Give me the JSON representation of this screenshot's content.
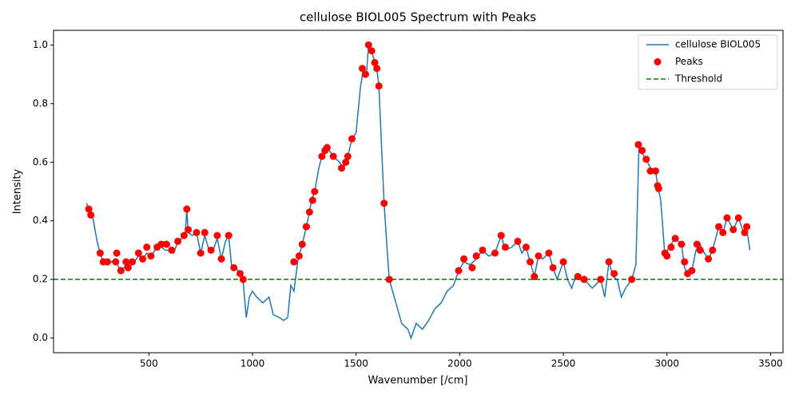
{
  "chart_data": {
    "type": "line",
    "title": "cellulose BIOL005 Spectrum with Peaks",
    "x_label": "Wavenumber [/cm]",
    "y_label": "Intensity",
    "xlim": [
      40,
      3560
    ],
    "ylim": [
      -0.05,
      1.05
    ],
    "xticks": [
      500,
      1000,
      1500,
      2000,
      2500,
      3000,
      3500
    ],
    "yticks": [
      {
        "value": 0,
        "label": "0.0"
      },
      0.2,
      0.4,
      0.6,
      0.8,
      {
        "value": 1,
        "label": "1.0"
      }
    ],
    "legend": "upper right",
    "series": [
      {
        "name": "cellulose BIOL005",
        "type": "line",
        "color": "#1f77b4",
        "x": [
          200,
          210,
          230,
          250,
          265,
          280,
          300,
          320,
          340,
          360,
          380,
          400,
          420,
          450,
          470,
          490,
          510,
          540,
          560,
          580,
          600,
          620,
          640,
          660,
          675,
          683,
          690,
          710,
          730,
          750,
          770,
          790,
          810,
          830,
          850,
          870,
          885,
          900,
          920,
          940,
          955,
          970,
          985,
          1000,
          1020,
          1050,
          1080,
          1100,
          1130,
          1150,
          1170,
          1185,
          1200,
          1220,
          1240,
          1260,
          1275,
          1285,
          1300,
          1320,
          1335,
          1360,
          1390,
          1420,
          1440,
          1460,
          1480,
          1500,
          1520,
          1535,
          1550,
          1560,
          1575,
          1590,
          1600,
          1610,
          1620,
          1635,
          1650,
          1660,
          1680,
          1700,
          1720,
          1750,
          1765,
          1790,
          1820,
          1850,
          1880,
          1910,
          1940,
          1970,
          1995,
          2020,
          2050,
          2080,
          2110,
          2140,
          2170,
          2200,
          2220,
          2250,
          2280,
          2300,
          2320,
          2340,
          2360,
          2380,
          2400,
          2430,
          2450,
          2470,
          2500,
          2520,
          2540,
          2560,
          2600,
          2640,
          2680,
          2700,
          2720,
          2740,
          2760,
          2780,
          2800,
          2830,
          2850,
          2865,
          2880,
          2900,
          2920,
          2945,
          2955,
          2970,
          2990,
          3010,
          3040,
          3070,
          3085,
          3100,
          3120,
          3140,
          3160,
          3180,
          3200,
          3220,
          3250,
          3270,
          3290,
          3320,
          3345,
          3370,
          3390,
          3400
        ],
        "values": [
          0.46,
          0.43,
          0.41,
          0.33,
          0.29,
          0.26,
          0.25,
          0.26,
          0.27,
          0.23,
          0.24,
          0.26,
          0.25,
          0.28,
          0.27,
          0.29,
          0.28,
          0.31,
          0.31,
          0.3,
          0.3,
          0.29,
          0.33,
          0.34,
          0.35,
          0.44,
          0.36,
          0.35,
          0.36,
          0.29,
          0.35,
          0.3,
          0.3,
          0.34,
          0.27,
          0.33,
          0.35,
          0.24,
          0.24,
          0.22,
          0.19,
          0.07,
          0.14,
          0.16,
          0.14,
          0.12,
          0.14,
          0.08,
          0.07,
          0.06,
          0.07,
          0.18,
          0.16,
          0.27,
          0.32,
          0.38,
          0.43,
          0.47,
          0.5,
          0.58,
          0.62,
          0.65,
          0.62,
          0.6,
          0.58,
          0.62,
          0.68,
          0.7,
          0.85,
          0.92,
          0.9,
          1.0,
          0.98,
          0.94,
          0.92,
          0.86,
          0.7,
          0.46,
          0.3,
          0.2,
          0.15,
          0.1,
          0.05,
          0.03,
          0.0,
          0.05,
          0.03,
          0.06,
          0.1,
          0.12,
          0.16,
          0.18,
          0.23,
          0.26,
          0.25,
          0.27,
          0.3,
          0.28,
          0.29,
          0.35,
          0.3,
          0.31,
          0.33,
          0.29,
          0.31,
          0.26,
          0.21,
          0.28,
          0.27,
          0.29,
          0.24,
          0.2,
          0.26,
          0.2,
          0.17,
          0.21,
          0.2,
          0.17,
          0.2,
          0.14,
          0.26,
          0.21,
          0.2,
          0.14,
          0.17,
          0.2,
          0.25,
          0.66,
          0.63,
          0.61,
          0.58,
          0.57,
          0.52,
          0.47,
          0.28,
          0.31,
          0.34,
          0.32,
          0.24,
          0.22,
          0.23,
          0.3,
          0.32,
          0.29,
          0.27,
          0.3,
          0.38,
          0.36,
          0.41,
          0.37,
          0.41,
          0.36,
          0.35,
          0.3
        ]
      },
      {
        "name": "Peaks",
        "type": "scatter",
        "color": "#ff0000",
        "x": [
          210,
          220,
          265,
          280,
          300,
          340,
          345,
          365,
          390,
          400,
          420,
          450,
          470,
          490,
          510,
          540,
          560,
          585,
          610,
          640,
          670,
          683,
          690,
          730,
          750,
          770,
          800,
          830,
          850,
          885,
          910,
          940,
          955,
          1200,
          1225,
          1240,
          1260,
          1275,
          1290,
          1300,
          1335,
          1350,
          1360,
          1390,
          1430,
          1450,
          1460,
          1480,
          1530,
          1545,
          1560,
          1575,
          1590,
          1600,
          1610,
          1635,
          1660,
          1995,
          2020,
          2060,
          2080,
          2110,
          2170,
          2200,
          2220,
          2280,
          2320,
          2340,
          2360,
          2380,
          2430,
          2450,
          2500,
          2570,
          2600,
          2680,
          2720,
          2745,
          2830,
          2862,
          2880,
          2900,
          2920,
          2945,
          2955,
          2960,
          2990,
          3000,
          3020,
          3040,
          3070,
          3085,
          3100,
          3120,
          3145,
          3160,
          3200,
          3220,
          3250,
          3270,
          3290,
          3320,
          3345,
          3375,
          3385
        ],
        "values": [
          0.44,
          0.42,
          0.29,
          0.26,
          0.26,
          0.26,
          0.29,
          0.23,
          0.26,
          0.24,
          0.26,
          0.29,
          0.27,
          0.31,
          0.28,
          0.31,
          0.32,
          0.32,
          0.3,
          0.33,
          0.35,
          0.44,
          0.37,
          0.36,
          0.29,
          0.36,
          0.3,
          0.35,
          0.27,
          0.35,
          0.24,
          0.22,
          0.2,
          0.26,
          0.28,
          0.32,
          0.38,
          0.43,
          0.47,
          0.5,
          0.62,
          0.64,
          0.65,
          0.62,
          0.58,
          0.6,
          0.62,
          0.68,
          0.92,
          0.9,
          1.0,
          0.98,
          0.94,
          0.92,
          0.86,
          0.46,
          0.2,
          0.23,
          0.27,
          0.24,
          0.28,
          0.3,
          0.29,
          0.35,
          0.31,
          0.33,
          0.31,
          0.26,
          0.21,
          0.28,
          0.29,
          0.24,
          0.26,
          0.21,
          0.2,
          0.2,
          0.26,
          0.22,
          0.2,
          0.66,
          0.64,
          0.61,
          0.57,
          0.57,
          0.52,
          0.51,
          0.29,
          0.28,
          0.31,
          0.34,
          0.32,
          0.26,
          0.22,
          0.23,
          0.32,
          0.3,
          0.27,
          0.3,
          0.38,
          0.36,
          0.41,
          0.37,
          0.41,
          0.36,
          0.38
        ]
      },
      {
        "name": "Threshold",
        "type": "hline",
        "color": "#008000",
        "values": [
          0.2
        ]
      }
    ]
  }
}
